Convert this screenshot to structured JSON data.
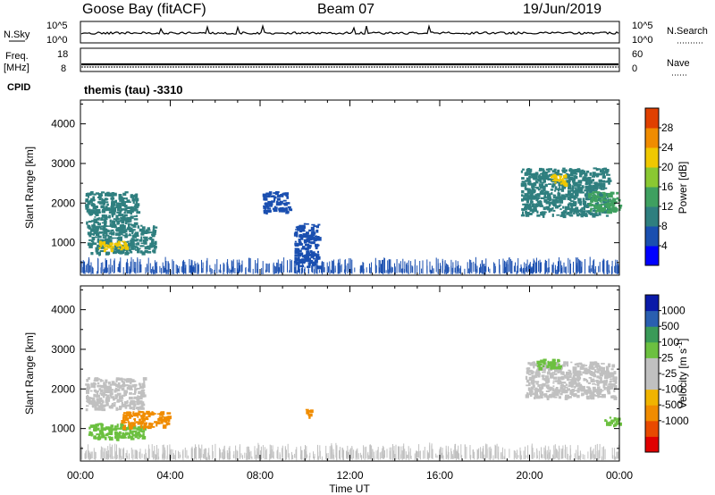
{
  "header": {
    "station": "Goose Bay (fitACF)",
    "beam": "Beam 07",
    "date": "19/Jun/2019"
  },
  "noise_panel": {
    "left_label": "N.Sky",
    "right_label": "N.Search",
    "left_ticks": [
      "10^5",
      "10^0"
    ],
    "right_ticks": [
      "10^5",
      "10^0"
    ]
  },
  "freq_panel": {
    "left_label": "Freq.",
    "left_unit": "[MHz]",
    "right_label": "Nave",
    "left_ticks": [
      "18",
      "8"
    ],
    "right_ticks": [
      "60",
      "0"
    ]
  },
  "cpid": {
    "label": "CPID",
    "text": "themis (tau) -3310"
  },
  "x_axis": {
    "label": "Time UT",
    "ticks": [
      "00:00",
      "04:00",
      "08:00",
      "12:00",
      "16:00",
      "20:00",
      "00:00"
    ]
  },
  "colors": {
    "power_scale": [
      "#0000ff",
      "#1a4fb0",
      "#2f7f7f",
      "#3fa060",
      "#8ac832",
      "#f0c800",
      "#f08c00",
      "#e04000",
      "#e00000"
    ],
    "velocity_scale": [
      "#e00000",
      "#e84a00",
      "#f08c00",
      "#f0b400",
      "#c0c0c0",
      "#c0c0c0",
      "#6cc040",
      "#3a9a58",
      "#2a5fb0",
      "#0a1aa8"
    ]
  },
  "chart_data": [
    {
      "type": "heatmap",
      "name": "power",
      "ylabel": "Slant Range [km]",
      "xlabel": "Time UT",
      "x_range_hours": [
        0,
        24
      ],
      "ylim": [
        180,
        4600
      ],
      "yticks": [
        1000,
        2000,
        3000,
        4000
      ],
      "colorbar": {
        "label": "Power [dB]",
        "range": [
          0,
          32
        ],
        "ticks": [
          4,
          8,
          12,
          16,
          20,
          24,
          28
        ]
      },
      "echo_regions": [
        {
          "t0": 0.3,
          "t1": 3.3,
          "r0": 750,
          "r1": 1450,
          "level": 9
        },
        {
          "t0": 0.8,
          "t1": 2.0,
          "r0": 850,
          "r1": 1050,
          "level": 20
        },
        {
          "t0": 0.2,
          "t1": 2.5,
          "r0": 1450,
          "r1": 2300,
          "level": 8
        },
        {
          "t0": 9.5,
          "t1": 10.6,
          "r0": 400,
          "r1": 1500,
          "level": 7
        },
        {
          "t0": 8.1,
          "t1": 9.3,
          "r0": 1800,
          "r1": 2300,
          "level": 6
        },
        {
          "t0": 19.6,
          "t1": 23.5,
          "r0": 1700,
          "r1": 2900,
          "level": 10
        },
        {
          "t0": 20.9,
          "t1": 21.6,
          "r0": 2500,
          "r1": 2750,
          "level": 22
        },
        {
          "t0": 22.6,
          "t1": 24.0,
          "r0": 1800,
          "r1": 2300,
          "level": 12
        },
        {
          "t0": 0.0,
          "t1": 24.0,
          "r0": 200,
          "r1": 500,
          "level": 6
        }
      ]
    },
    {
      "type": "heatmap",
      "name": "velocity",
      "ylabel": "Slant Range [km]",
      "xlabel": "Time UT",
      "x_range_hours": [
        0,
        24
      ],
      "ylim": [
        180,
        4600
      ],
      "yticks": [
        1000,
        2000,
        3000,
        4000
      ],
      "colorbar": {
        "label": "Velocity [m s^-1]",
        "ticks": [
          "1000",
          "500",
          "100",
          "25",
          "-25",
          "-100",
          "-500",
          "-1000"
        ]
      },
      "echo_regions": [
        {
          "t0": 0.3,
          "t1": 2.8,
          "r0": 750,
          "r1": 1150,
          "velocity": 110
        },
        {
          "t0": 1.8,
          "t1": 3.9,
          "r0": 1050,
          "r1": 1450,
          "velocity": -150
        },
        {
          "t0": 0.2,
          "t1": 2.8,
          "r0": 1500,
          "r1": 2300,
          "velocity": 0
        },
        {
          "t0": 10.0,
          "t1": 10.3,
          "r0": 1300,
          "r1": 1500,
          "velocity": -120
        },
        {
          "t0": 19.8,
          "t1": 23.8,
          "r0": 1800,
          "r1": 2700,
          "velocity": 0
        },
        {
          "t0": 20.3,
          "t1": 21.3,
          "r0": 2550,
          "r1": 2800,
          "velocity": 110
        },
        {
          "t0": 23.3,
          "t1": 24.0,
          "r0": 1100,
          "r1": 1300,
          "velocity": 300
        },
        {
          "t0": 0.0,
          "t1": 24.0,
          "r0": 200,
          "r1": 500,
          "velocity": 20
        }
      ]
    }
  ]
}
